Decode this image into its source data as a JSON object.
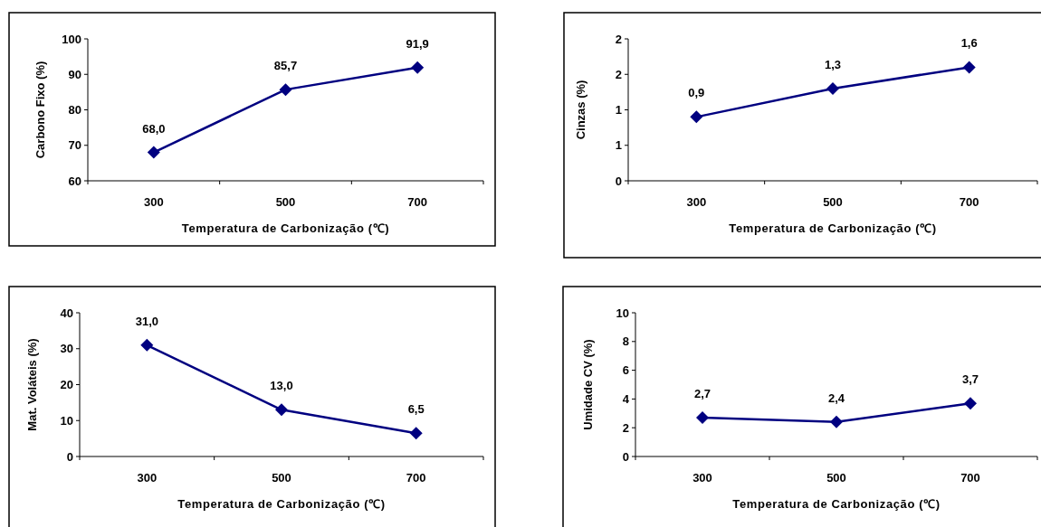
{
  "chart_data": [
    {
      "type": "line",
      "xlabel": "Temperatura de Carbonização (℃)",
      "ylabel": "Carbono Fixo (%)",
      "categories": [
        "300",
        "500",
        "700"
      ],
      "series": [
        {
          "color": "#000080",
          "values": [
            68.0,
            85.7,
            91.9
          ],
          "value_labels": [
            "68,0",
            "85,7",
            "91,9"
          ]
        }
      ],
      "ylim": [
        60,
        100
      ],
      "yticks": [
        60,
        70,
        80,
        90,
        100
      ],
      "marker": "diamond",
      "line_style": "solid"
    },
    {
      "type": "line",
      "xlabel": "Temperatura de Carbonização (℃)",
      "ylabel": "Cinzas (%)",
      "categories": [
        "300",
        "500",
        "700"
      ],
      "series": [
        {
          "color": "#000080",
          "values": [
            0.9,
            1.3,
            1.6
          ],
          "value_labels": [
            "0,9",
            "1,3",
            "1,6"
          ]
        }
      ],
      "ylim": [
        0,
        2
      ],
      "yticks": [
        0,
        {
          "value": 0.5,
          "label": "1"
        },
        1,
        {
          "value": 1.5,
          "label": "2"
        },
        2
      ],
      "marker": "diamond",
      "line_style": "solid"
    },
    {
      "type": "line",
      "xlabel": "Temperatura de Carbonização (℃)",
      "ylabel": "Mat. Voláteis (%)",
      "categories": [
        "300",
        "500",
        "700"
      ],
      "series": [
        {
          "color": "#000080",
          "values": [
            31.0,
            13.0,
            6.5
          ],
          "value_labels": [
            "31,0",
            "13,0",
            "6,5"
          ]
        }
      ],
      "ylim": [
        0,
        40
      ],
      "yticks": [
        0,
        10,
        20,
        30,
        40
      ],
      "marker": "diamond",
      "line_style": "solid"
    },
    {
      "type": "line",
      "xlabel": "Temperatura de Carbonização (℃)",
      "ylabel": "Umidade CV (%)",
      "categories": [
        "300",
        "500",
        "700"
      ],
      "series": [
        {
          "color": "#000080",
          "values": [
            2.7,
            2.4,
            3.7
          ],
          "value_labels": [
            "2,7",
            "2,4",
            "3,7"
          ]
        }
      ],
      "ylim": [
        0,
        10
      ],
      "yticks": [
        0,
        2,
        4,
        6,
        8,
        10
      ],
      "marker": "diamond",
      "line_style": "solid"
    }
  ]
}
